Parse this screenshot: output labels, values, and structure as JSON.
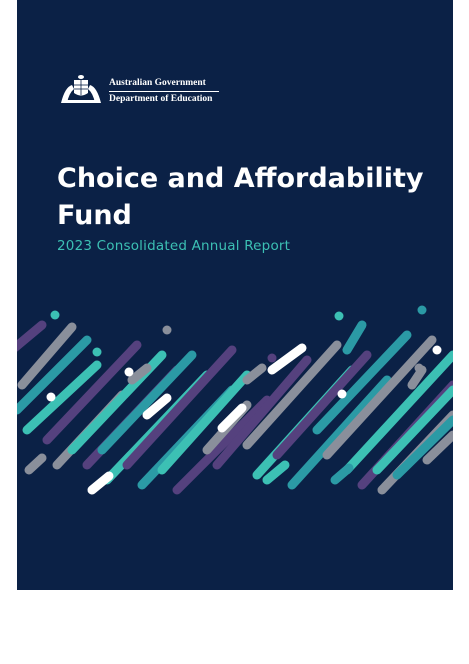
{
  "header": {
    "gov_name": "Australian Government",
    "department": "Department of Education",
    "crest_icon": "coat-of-arms-icon"
  },
  "cover": {
    "title_line1": "Choice and Affordability",
    "title_line2": "Fund",
    "subtitle": "2023 Consolidated Annual Report",
    "background_color": "#0b2146",
    "accent_color": "#3cc0b4",
    "pattern_icon": "diagonal-stripes-pattern"
  }
}
